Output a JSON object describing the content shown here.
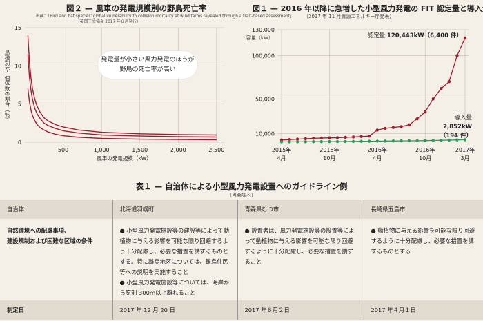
{
  "fig2": {
    "title": "図２ — 風車の発電規模別の野鳥死亡率",
    "source": "出典：「Bird and bat species' global vulnerability to collision mortality at wind farms revealed through a trait-based assessment」",
    "source2": "（英国王立協会 2017 年８月発行）",
    "callout": [
      "発電量が小さい風力発電のほうが",
      "野鳥の死亡率が高い"
    ],
    "ylabel": "鳥種別死亡個体数の割合（％）",
    "xlabel": "風車の発電規模（kW）"
  },
  "fig1": {
    "title": "図１ — 2016 年以降に急増した小型風力発電の FIT 認定量と導入量",
    "subtitle": "（2017 年 11 月資源エネルギー庁発表）",
    "ylabel": "容量（kW）",
    "annot_cert_prefix": "認定量 ",
    "annot_cert_value": "120,443kW（6,400 件）",
    "annot_intro_1": "導入量",
    "annot_intro_2": "2,852kW",
    "annot_intro_3": "（194 件）"
  },
  "chart_data": [
    {
      "type": "line",
      "title": "風車の発電規模別の野鳥死亡率",
      "xlabel": "風車の発電規模（kW）",
      "ylabel": "鳥種別死亡個体数の割合（％）",
      "xlim": [
        0,
        2600
      ],
      "ylim": [
        0,
        15
      ],
      "xticks": [
        500,
        1000,
        1500,
        2000,
        2500
      ],
      "xtick_labels": [
        "500",
        "1,000",
        "1,500",
        "2,000",
        "2,500"
      ],
      "yticks": [
        0,
        5,
        10,
        15
      ],
      "ytick_labels": [
        "0",
        "5",
        "10",
        "15"
      ],
      "grid": true,
      "color": "#a31c2e",
      "series": [
        {
          "x": [
            40,
            60,
            80,
            100,
            130,
            160,
            200,
            250,
            300,
            400,
            500,
            700,
            1000,
            1500,
            2000,
            2500
          ],
          "values": [
            14.0,
            10.5,
            8.4,
            7.0,
            5.6,
            4.7,
            3.9,
            3.2,
            2.8,
            2.3,
            2.0,
            1.6,
            1.3,
            1.1,
            1.0,
            0.95
          ]
        },
        {
          "x": [
            40,
            60,
            80,
            100,
            130,
            160,
            200,
            250,
            300,
            400,
            500,
            700,
            1000,
            1500,
            2000,
            2500
          ],
          "values": [
            11.5,
            8.5,
            6.8,
            5.6,
            4.4,
            3.7,
            3.1,
            2.5,
            2.2,
            1.8,
            1.5,
            1.2,
            0.95,
            0.8,
            0.72,
            0.68
          ]
        },
        {
          "x": [
            40,
            60,
            80,
            100,
            130,
            160,
            200,
            250,
            300,
            400,
            500,
            700,
            1000,
            1500,
            2000,
            2500
          ],
          "values": [
            7.0,
            5.3,
            4.2,
            3.5,
            2.8,
            2.3,
            1.9,
            1.6,
            1.35,
            1.05,
            0.85,
            0.65,
            0.5,
            0.4,
            0.35,
            0.32
          ]
        }
      ]
    },
    {
      "type": "line",
      "title": "2016 年以降に急増した小型風力発電の FIT 認定量と導入量",
      "ylabel": "容量（kW）",
      "ylim": [
        0,
        130000
      ],
      "yticks": [
        10000,
        50000,
        100000,
        130000
      ],
      "ytick_labels": [
        "10,000",
        "50,000",
        "100,000",
        "130,000"
      ],
      "categories": [
        "2015年4月",
        "2015年5月",
        "2015年6月",
        "2015年7月",
        "2015年8月",
        "2015年9月",
        "2015年10月",
        "2015年11月",
        "2015年12月",
        "2016年1月",
        "2016年2月",
        "2016年3月",
        "2016年4月",
        "2016年5月",
        "2016年6月",
        "2016年7月",
        "2016年8月",
        "2016年9月",
        "2016年10月",
        "2016年11月",
        "2016年12月",
        "2017年1月",
        "2017年2月",
        "2017年3月"
      ],
      "xtick_labels": [
        [
          "2015年",
          "4月"
        ],
        [
          "2015年",
          "10月"
        ],
        [
          "2016年",
          "4月"
        ],
        [
          "2016年",
          "10月"
        ],
        [
          "2017年",
          "3月"
        ]
      ],
      "xtick_index": [
        0,
        6,
        12,
        18,
        23
      ],
      "grid": true,
      "series": [
        {
          "name": "認定量",
          "color": "#a31c2e",
          "values": [
            2500,
            3000,
            3500,
            4000,
            4500,
            4800,
            5000,
            5200,
            5600,
            6000,
            6500,
            7000,
            14000,
            16000,
            17000,
            18000,
            20000,
            27000,
            35000,
            50000,
            62000,
            70000,
            100000,
            120443
          ]
        },
        {
          "name": "導入量",
          "color": "#2a9a5a",
          "values": [
            400,
            450,
            500,
            550,
            600,
            650,
            700,
            750,
            800,
            900,
            1000,
            1100,
            1200,
            1300,
            1400,
            1500,
            1600,
            1700,
            1800,
            2000,
            2200,
            2400,
            2600,
            2852
          ]
        }
      ]
    }
  ],
  "table1": {
    "title": "表１ — 自治体による小型風力発電設置へのガイドライン例",
    "note": "（当会調べ）",
    "headers": [
      "自治体",
      "北海道羽幌町",
      "青森県むつ市",
      "長崎県五島市"
    ],
    "row1_label_1": "自然環境への配慮事項、",
    "row1_label_2": "建設規制および困難な区域の条件",
    "haboro_1": "● 小型風力発電施設等の建設等によって動植物に与える影響を可能な限り回避するよう十分配慮し、必要な措置を講ずるものとする。特に離島地区については、離島住民等への説明を実施すること",
    "haboro_2": "● 小型風力発電施設等については、海岸から原則 300ｍ以上離れること",
    "mutsu": "● 設置者は、風力発電施設等の設置等によって動植物に与える影響を可能な限り回避するように十分配慮し、必要な措置を講ずること",
    "goto": "● 動植物に与える影響を可能な限り回避するように十分配慮し、必要な措置を講ずるものとする",
    "row2_label": "制定日",
    "dates": [
      "2017 年 12 月 20 日",
      "2017 年６月２日",
      "2017 年４月１日"
    ]
  }
}
